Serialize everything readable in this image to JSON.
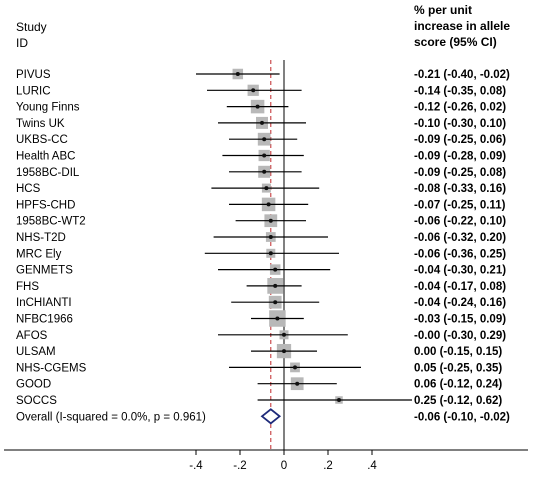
{
  "header": {
    "study_lines": [
      "Study",
      "ID"
    ],
    "effect_lines": [
      "% per unit",
      "increase in allele",
      "score (95% CI)"
    ]
  },
  "chart_data": {
    "type": "forest",
    "xlim": [
      -0.45,
      0.65
    ],
    "xticks": [
      -0.4,
      -0.2,
      0,
      0.2,
      0.4
    ],
    "xtick_labels": [
      "-.4",
      "-.2",
      "0",
      ".2",
      ".4"
    ],
    "null_line": 0,
    "studies": [
      {
        "name": "PIVUS",
        "est": -0.21,
        "lo": -0.4,
        "hi": -0.02,
        "text": "-0.21 (-0.40, -0.02)",
        "weight": 3.0
      },
      {
        "name": "LURIC",
        "est": -0.14,
        "lo": -0.35,
        "hi": 0.08,
        "text": "-0.14 (-0.35, 0.08)",
        "weight": 3.5
      },
      {
        "name": "Young Finns",
        "est": -0.12,
        "lo": -0.26,
        "hi": 0.02,
        "text": "-0.12 (-0.26, 0.02)",
        "weight": 5.0
      },
      {
        "name": "Twins UK",
        "est": -0.1,
        "lo": -0.3,
        "hi": 0.1,
        "text": "-0.10 (-0.30, 0.10)",
        "weight": 4.0
      },
      {
        "name": "UKBS-CC",
        "est": -0.09,
        "lo": -0.25,
        "hi": 0.06,
        "text": "-0.09 (-0.25, 0.06)",
        "weight": 4.5
      },
      {
        "name": "Health ABC",
        "est": -0.09,
        "lo": -0.28,
        "hi": 0.09,
        "text": "-0.09 (-0.28, 0.09)",
        "weight": 3.5
      },
      {
        "name": "1958BC-DIL",
        "est": -0.09,
        "lo": -0.25,
        "hi": 0.08,
        "text": "-0.09 (-0.25, 0.08)",
        "weight": 4.0
      },
      {
        "name": "HCS",
        "est": -0.08,
        "lo": -0.33,
        "hi": 0.16,
        "text": "-0.08 (-0.33, 0.16)",
        "weight": 2.0
      },
      {
        "name": "HPFS-CHD",
        "est": -0.07,
        "lo": -0.25,
        "hi": 0.11,
        "text": "-0.07 (-0.25, 0.11)",
        "weight": 5.0
      },
      {
        "name": "1958BC-WT2",
        "est": -0.06,
        "lo": -0.22,
        "hi": 0.1,
        "text": "-0.06 (-0.22, 0.10)",
        "weight": 4.5
      },
      {
        "name": "NHS-T2D",
        "est": -0.06,
        "lo": -0.32,
        "hi": 0.2,
        "text": "-0.06 (-0.32, 0.20)",
        "weight": 2.5
      },
      {
        "name": "MRC Ely",
        "est": -0.06,
        "lo": -0.36,
        "hi": 0.25,
        "text": "-0.06 (-0.36, 0.25)",
        "weight": 2.0
      },
      {
        "name": "GENMETS",
        "est": -0.04,
        "lo": -0.3,
        "hi": 0.21,
        "text": "-0.04 (-0.30, 0.21)",
        "weight": 3.0
      },
      {
        "name": "FHS",
        "est": -0.04,
        "lo": -0.17,
        "hi": 0.08,
        "text": "-0.04 (-0.17, 0.08)",
        "weight": 6.5
      },
      {
        "name": "InCHIANTI",
        "est": -0.04,
        "lo": -0.24,
        "hi": 0.16,
        "text": "-0.04 (-0.24, 0.16)",
        "weight": 4.5
      },
      {
        "name": "NFBC1966",
        "est": -0.03,
        "lo": -0.15,
        "hi": 0.09,
        "text": "-0.03 (-0.15, 0.09)",
        "weight": 7.0
      },
      {
        "name": "AFOS",
        "est": -0.0,
        "lo": -0.3,
        "hi": 0.29,
        "text": "-0.00 (-0.30, 0.29)",
        "weight": 2.0
      },
      {
        "name": "ULSAM",
        "est": 0.0,
        "lo": -0.15,
        "hi": 0.15,
        "text": "0.00 (-0.15, 0.15)",
        "weight": 5.5
      },
      {
        "name": "NHS-CGEMS",
        "est": 0.05,
        "lo": -0.25,
        "hi": 0.35,
        "text": "0.05 (-0.25, 0.35)",
        "weight": 2.5
      },
      {
        "name": "GOOD",
        "est": 0.06,
        "lo": -0.12,
        "hi": 0.24,
        "text": "0.06 (-0.12, 0.24)",
        "weight": 4.5
      },
      {
        "name": "SOCCS",
        "est": 0.25,
        "lo": -0.12,
        "hi": 0.62,
        "text": "0.25 (-0.12, 0.62)",
        "weight": 1.0
      }
    ],
    "overall": {
      "label": "Overall  (I-squared = 0.0%, p = 0.961)",
      "est": -0.06,
      "lo": -0.1,
      "hi": -0.02,
      "text": "-0.06 (-0.10, -0.02)"
    },
    "colors": {
      "box": "#b8b8b8",
      "ci_line": "#000000",
      "point": "#111111",
      "null_line": "#000000",
      "overall_line": "#c0282a",
      "diamond": "#1e2a7a"
    }
  }
}
